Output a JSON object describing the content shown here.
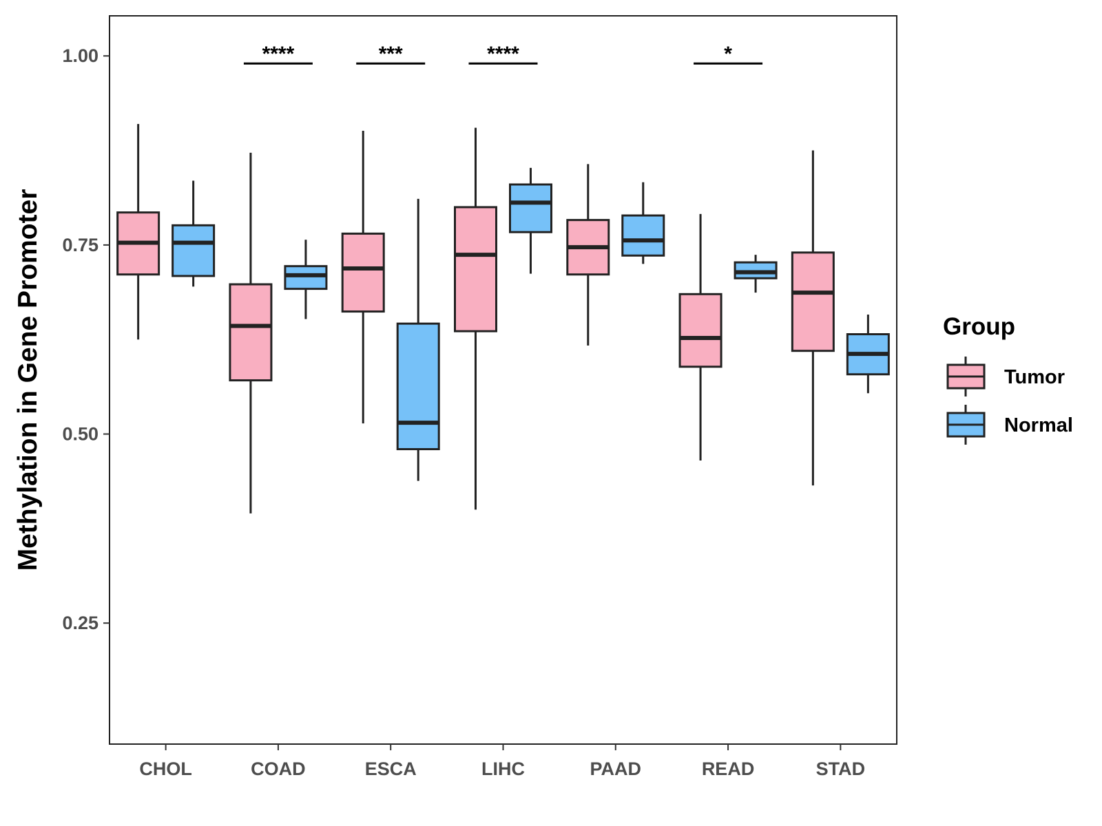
{
  "chart_data": {
    "type": "boxplot",
    "ylabel": "Methylation in Gene Promoter",
    "xlabel": "",
    "ylim": [
      0.09,
      1.053
    ],
    "yticks": [
      0.25,
      0.5,
      0.75,
      1.0
    ],
    "ytick_labels": [
      "0.25",
      "0.50",
      "0.75",
      "1.00"
    ],
    "categories": [
      "CHOL",
      "COAD",
      "ESCA",
      "LIHC",
      "PAAD",
      "READ",
      "STAD"
    ],
    "legend": {
      "title": "Group",
      "position": "right",
      "entries": [
        {
          "name": "Tumor",
          "color": "#F9AFC1"
        },
        {
          "name": "Normal",
          "color": "#76C1F8"
        }
      ]
    },
    "series": [
      {
        "name": "Tumor",
        "color": "#F9AFC1",
        "boxes": [
          {
            "min": 0.625,
            "q1": 0.711,
            "median": 0.753,
            "q3": 0.793,
            "max": 0.91
          },
          {
            "min": 0.395,
            "q1": 0.571,
            "median": 0.643,
            "q3": 0.698,
            "max": 0.872
          },
          {
            "min": 0.514,
            "q1": 0.662,
            "median": 0.719,
            "q3": 0.765,
            "max": 0.901
          },
          {
            "min": 0.4,
            "q1": 0.636,
            "median": 0.737,
            "q3": 0.8,
            "max": 0.905
          },
          {
            "min": 0.617,
            "q1": 0.711,
            "median": 0.747,
            "q3": 0.783,
            "max": 0.857
          },
          {
            "min": 0.465,
            "q1": 0.589,
            "median": 0.627,
            "q3": 0.685,
            "max": 0.791
          },
          {
            "min": 0.432,
            "q1": 0.61,
            "median": 0.687,
            "q3": 0.74,
            "max": 0.875
          }
        ]
      },
      {
        "name": "Normal",
        "color": "#76C1F8",
        "boxes": [
          {
            "min": 0.695,
            "q1": 0.709,
            "median": 0.753,
            "q3": 0.776,
            "max": 0.835
          },
          {
            "min": 0.652,
            "q1": 0.692,
            "median": 0.71,
            "q3": 0.722,
            "max": 0.757
          },
          {
            "min": 0.438,
            "q1": 0.48,
            "median": 0.515,
            "q3": 0.646,
            "max": 0.811
          },
          {
            "min": 0.712,
            "q1": 0.767,
            "median": 0.806,
            "q3": 0.83,
            "max": 0.852
          },
          {
            "min": 0.725,
            "q1": 0.736,
            "median": 0.756,
            "q3": 0.789,
            "max": 0.833
          },
          {
            "min": 0.687,
            "q1": 0.706,
            "median": 0.714,
            "q3": 0.727,
            "max": 0.737
          },
          {
            "min": 0.554,
            "q1": 0.579,
            "median": 0.606,
            "q3": 0.632,
            "max": 0.658
          }
        ]
      }
    ],
    "significance": [
      {
        "category": "COAD",
        "label": "****"
      },
      {
        "category": "ESCA",
        "label": "***"
      },
      {
        "category": "LIHC",
        "label": "****"
      },
      {
        "category": "READ",
        "label": "*"
      }
    ],
    "significance_y": 0.99
  }
}
